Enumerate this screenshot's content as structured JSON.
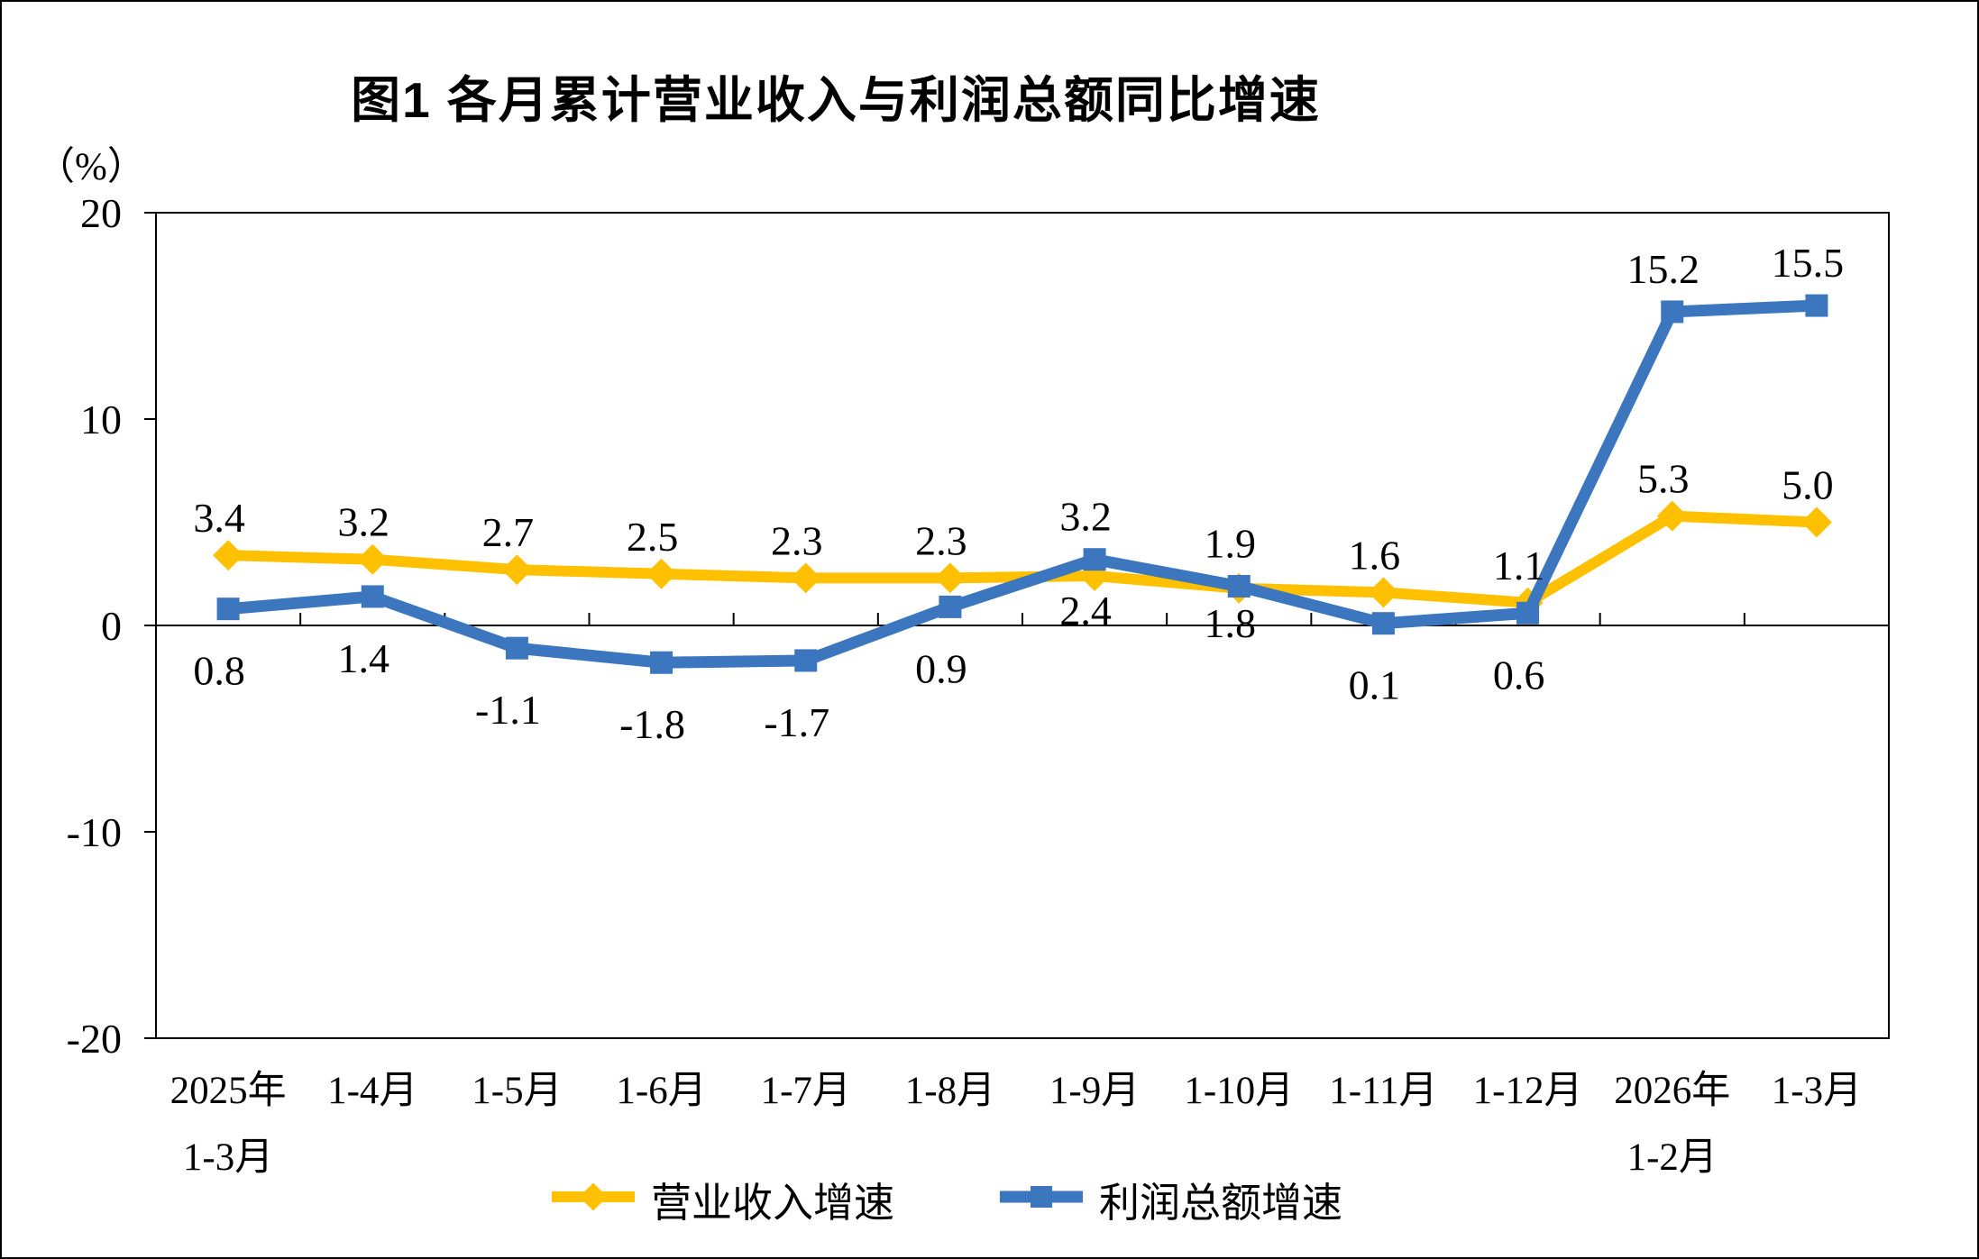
{
  "page": {
    "title": "图1  各月累计营业收入与利润总额同比增速",
    "y_unit_label": "（%）"
  },
  "legend": {
    "items": [
      {
        "label": "营业收入增速"
      },
      {
        "label": "利润总额增速"
      }
    ]
  },
  "chart_data": {
    "type": "line",
    "title": "图1  各月累计营业收入与利润总额同比增速",
    "x_categories": [
      [
        "2025年",
        "1-3月"
      ],
      [
        "1-4月"
      ],
      [
        "1-5月"
      ],
      [
        "1-6月"
      ],
      [
        "1-7月"
      ],
      [
        "1-8月"
      ],
      [
        "1-9月"
      ],
      [
        "1-10月"
      ],
      [
        "1-11月"
      ],
      [
        "1-12月"
      ],
      [
        "2026年",
        "1-2月"
      ],
      [
        "1-3月"
      ]
    ],
    "series": [
      {
        "name": "营业收入增速",
        "marker": "diamond",
        "color": "#FFC000",
        "values": [
          3.4,
          3.2,
          2.7,
          2.5,
          2.3,
          2.3,
          2.4,
          1.8,
          1.6,
          1.1,
          5.3,
          5.0
        ],
        "label_positions": [
          "above",
          "above",
          "above",
          "above",
          "above",
          "above",
          "below",
          "below",
          "above",
          "above",
          "above",
          "above"
        ]
      },
      {
        "name": "利润总额增速",
        "marker": "square",
        "color": "#3B76BE",
        "values": [
          0.8,
          1.4,
          -1.1,
          -1.8,
          -1.7,
          0.9,
          3.2,
          1.9,
          0.1,
          0.6,
          15.2,
          15.5
        ],
        "label_positions": [
          "below",
          "below",
          "below",
          "below",
          "below",
          "below",
          "above",
          "above",
          "below",
          "below",
          "above",
          "above"
        ]
      }
    ],
    "ylabel": "（%）",
    "xlabel": "",
    "ylim": [
      -20,
      20
    ],
    "yticks": [
      20,
      10,
      0,
      -10,
      -20
    ],
    "grid": false,
    "legend_position": "bottom"
  }
}
